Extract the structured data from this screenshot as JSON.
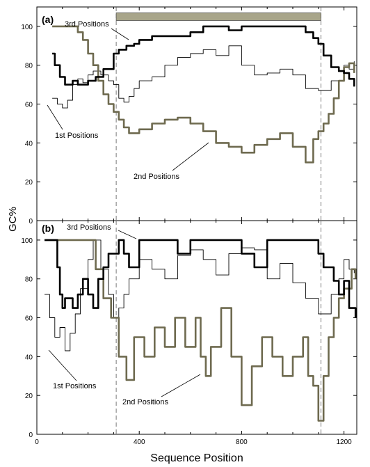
{
  "figure": {
    "ylabel": "GC%",
    "xlabel": "Sequence Position",
    "colors": {
      "third": "#000000",
      "first": "#000000",
      "second": "#6e6a4f",
      "bar": "#a8a58a",
      "axis": "#000000"
    }
  },
  "chart_data": [
    {
      "type": "line",
      "panel_label": "(a)",
      "xlim": [
        0,
        1250
      ],
      "ylim": [
        0,
        110
      ],
      "yticks": [
        "0",
        "20",
        "40",
        "60",
        "80",
        "100"
      ],
      "xticks": [],
      "grid": false,
      "vlines": [
        310,
        1110
      ],
      "bar": {
        "x_start": 310,
        "x_end": 1110,
        "y_low": 103,
        "y_high": 107
      },
      "series": [
        {
          "name": "3rd Positions",
          "key": "third",
          "x": [
            60,
            70,
            90,
            110,
            120,
            140,
            160,
            200,
            230,
            260,
            300,
            320,
            350,
            380,
            400,
            450,
            500,
            550,
            600,
            650,
            700,
            750,
            800,
            850,
            900,
            950,
            1000,
            1050,
            1080,
            1100,
            1120,
            1150,
            1180,
            1200,
            1220,
            1240
          ],
          "y": [
            86,
            80,
            74,
            70,
            70,
            72,
            70,
            72,
            74,
            78,
            86,
            88,
            90,
            91,
            93,
            95,
            95,
            95,
            97,
            100,
            100,
            98,
            100,
            100,
            100,
            100,
            100,
            97,
            94,
            91,
            85,
            79,
            77,
            76,
            73,
            69
          ]
        },
        {
          "name": "1st Positions",
          "key": "first",
          "x": [
            60,
            80,
            100,
            120,
            140,
            160,
            180,
            200,
            220,
            250,
            280,
            300,
            320,
            340,
            360,
            380,
            400,
            450,
            500,
            550,
            600,
            650,
            700,
            750,
            800,
            850,
            900,
            950,
            1000,
            1050,
            1100,
            1150,
            1200,
            1220,
            1240
          ],
          "y": [
            63,
            60,
            58,
            62,
            70,
            73,
            71,
            75,
            77,
            75,
            72,
            70,
            63,
            61,
            64,
            68,
            72,
            74,
            80,
            84,
            86,
            88,
            85,
            90,
            80,
            75,
            76,
            78,
            75,
            68,
            67,
            72,
            80,
            78,
            82
          ]
        },
        {
          "name": "2nd Positions",
          "key": "second",
          "x": [
            60,
            100,
            140,
            160,
            180,
            200,
            220,
            240,
            260,
            280,
            300,
            320,
            340,
            360,
            400,
            450,
            500,
            550,
            600,
            650,
            700,
            750,
            800,
            850,
            900,
            950,
            1000,
            1050,
            1080,
            1100,
            1120,
            1140,
            1160,
            1180,
            1200,
            1220,
            1240
          ],
          "y": [
            100,
            100,
            100,
            97,
            93,
            86,
            80,
            72,
            65,
            60,
            56,
            52,
            48,
            45,
            47,
            50,
            52,
            53,
            50,
            46,
            40,
            38,
            35,
            39,
            42,
            45,
            38,
            30,
            42,
            46,
            50,
            55,
            63,
            72,
            79,
            81,
            76
          ]
        }
      ],
      "annotations": [
        "3rd Positions",
        "1st Positions",
        "2nd Positions"
      ]
    },
    {
      "type": "line",
      "panel_label": "(b)",
      "xlim": [
        0,
        1250
      ],
      "ylim": [
        0,
        110
      ],
      "yticks": [
        "0",
        "20",
        "40",
        "60",
        "80",
        "100"
      ],
      "xticks": [
        "0",
        "400",
        "800",
        "1200"
      ],
      "xtick_values": [
        0,
        400,
        800,
        1200
      ],
      "grid": false,
      "vlines": [
        310,
        1110
      ],
      "series": [
        {
          "name": "3rd Positions",
          "key": "third",
          "x": [
            30,
            60,
            80,
            90,
            100,
            110,
            140,
            160,
            180,
            200,
            220,
            240,
            260,
            280,
            300,
            320,
            340,
            360,
            400,
            450,
            500,
            550,
            600,
            650,
            700,
            750,
            800,
            850,
            900,
            950,
            1000,
            1050,
            1100,
            1120,
            1140,
            1160,
            1180,
            1200,
            1220,
            1245
          ],
          "y": [
            100,
            100,
            86,
            72,
            65,
            70,
            65,
            72,
            80,
            72,
            65,
            80,
            86,
            93,
            93,
            100,
            93,
            86,
            100,
            100,
            100,
            93,
            100,
            100,
            100,
            100,
            93,
            86,
            100,
            100,
            100,
            100,
            93,
            86,
            86,
            79,
            72,
            79,
            65,
            60
          ]
        },
        {
          "name": "1st Positions",
          "key": "first",
          "x": [
            30,
            50,
            70,
            90,
            110,
            130,
            150,
            170,
            200,
            220,
            250,
            280,
            300,
            320,
            340,
            360,
            400,
            450,
            500,
            550,
            600,
            650,
            700,
            750,
            800,
            850,
            900,
            950,
            1000,
            1050,
            1100,
            1150,
            1180,
            1200,
            1220,
            1240
          ],
          "y": [
            72,
            60,
            50,
            55,
            43,
            52,
            62,
            75,
            90,
            100,
            85,
            72,
            60,
            65,
            72,
            80,
            90,
            85,
            80,
            92,
            95,
            90,
            82,
            93,
            96,
            95,
            80,
            88,
            78,
            70,
            62,
            72,
            80,
            90,
            85,
            83
          ]
        },
        {
          "name": "2nd Positions",
          "key": "second",
          "x": [
            30,
            60,
            100,
            150,
            200,
            230,
            260,
            290,
            320,
            350,
            380,
            420,
            460,
            500,
            540,
            580,
            620,
            640,
            660,
            680,
            720,
            760,
            800,
            840,
            880,
            920,
            960,
            1000,
            1040,
            1060,
            1080,
            1100,
            1120,
            1140,
            1160,
            1180,
            1200,
            1230,
            1245
          ],
          "y": [
            100,
            100,
            100,
            100,
            100,
            85,
            70,
            60,
            40,
            28,
            50,
            40,
            55,
            45,
            60,
            45,
            60,
            40,
            30,
            45,
            65,
            40,
            15,
            35,
            50,
            40,
            30,
            40,
            50,
            30,
            25,
            7,
            30,
            50,
            60,
            70,
            75,
            85,
            80
          ]
        }
      ],
      "annotations": [
        "3rd Positions",
        "1st Positions",
        "2nd Positions"
      ]
    }
  ]
}
